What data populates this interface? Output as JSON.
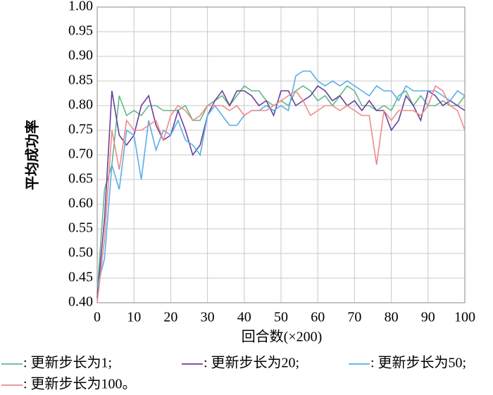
{
  "chart_data": {
    "type": "line",
    "xlabel": "回合数(×200)",
    "ylabel": "平均成功率",
    "x": [
      0,
      2,
      4,
      6,
      8,
      10,
      12,
      14,
      16,
      18,
      20,
      22,
      24,
      26,
      28,
      30,
      32,
      34,
      36,
      38,
      40,
      42,
      44,
      46,
      48,
      50,
      52,
      54,
      56,
      58,
      60,
      62,
      64,
      66,
      68,
      70,
      72,
      74,
      76,
      78,
      80,
      82,
      84,
      86,
      88,
      90,
      92,
      94,
      96,
      98,
      100
    ],
    "xlim": [
      0,
      100
    ],
    "xticks": [
      0,
      10,
      20,
      30,
      40,
      50,
      60,
      70,
      80,
      90,
      100
    ],
    "ylim": [
      0.4,
      1.0
    ],
    "yticks": [
      {
        "value": 0.4,
        "label": "0.40"
      },
      0.45,
      {
        "value": 0.5,
        "label": "0.50"
      },
      0.55,
      {
        "value": 0.6,
        "label": "0.60"
      },
      0.65,
      {
        "value": 0.7,
        "label": "0.70"
      },
      0.75,
      {
        "value": 0.8,
        "label": "0.80"
      },
      0.85,
      {
        "value": 0.9,
        "label": "0.90"
      },
      0.95,
      {
        "value": 1.0,
        "label": "1.00"
      }
    ],
    "grid": true,
    "series": [
      {
        "name": ": 更新步长为1;",
        "color": "#5fb98c",
        "values": [
          0.42,
          0.63,
          0.68,
          0.82,
          0.78,
          0.79,
          0.78,
          0.8,
          0.8,
          0.79,
          0.79,
          0.79,
          0.8,
          0.77,
          0.77,
          0.8,
          0.81,
          0.82,
          0.8,
          0.82,
          0.84,
          0.83,
          0.83,
          0.81,
          0.8,
          0.81,
          0.8,
          0.83,
          0.84,
          0.83,
          0.81,
          0.82,
          0.8,
          0.82,
          0.84,
          0.83,
          0.8,
          0.8,
          0.79,
          0.8,
          0.79,
          0.82,
          0.83,
          0.8,
          0.82,
          0.8,
          0.8,
          0.81,
          0.8,
          0.8,
          0.82
        ]
      },
      {
        "name": ": 更新步长为20;",
        "color": "#6b3f9c",
        "values": [
          0.41,
          0.57,
          0.83,
          0.74,
          0.72,
          0.74,
          0.8,
          0.82,
          0.76,
          0.73,
          0.74,
          0.79,
          0.75,
          0.7,
          0.72,
          0.78,
          0.81,
          0.83,
          0.8,
          0.83,
          0.83,
          0.82,
          0.8,
          0.81,
          0.78,
          0.83,
          0.83,
          0.8,
          0.81,
          0.82,
          0.84,
          0.83,
          0.81,
          0.82,
          0.8,
          0.81,
          0.79,
          0.81,
          0.79,
          0.79,
          0.75,
          0.77,
          0.82,
          0.8,
          0.77,
          0.83,
          0.82,
          0.8,
          0.81,
          0.8,
          0.79
        ]
      },
      {
        "name": ": 更新步长为50;",
        "color": "#5aaee8",
        "values": [
          0.43,
          0.49,
          0.68,
          0.63,
          0.75,
          0.74,
          0.65,
          0.77,
          0.71,
          0.75,
          0.74,
          0.77,
          0.73,
          0.72,
          0.7,
          0.78,
          0.8,
          0.78,
          0.76,
          0.76,
          0.78,
          0.79,
          0.79,
          0.8,
          0.79,
          0.8,
          0.79,
          0.86,
          0.87,
          0.87,
          0.85,
          0.84,
          0.85,
          0.84,
          0.85,
          0.84,
          0.83,
          0.82,
          0.84,
          0.83,
          0.83,
          0.81,
          0.84,
          0.83,
          0.83,
          0.83,
          0.83,
          0.82,
          0.81,
          0.83,
          0.82
        ]
      },
      {
        "name": ": 更新步长为100。",
        "color": "#f08a8a",
        "values": [
          0.4,
          0.53,
          0.75,
          0.67,
          0.77,
          0.75,
          0.75,
          0.76,
          0.77,
          0.73,
          0.78,
          0.8,
          0.79,
          0.77,
          0.78,
          0.8,
          0.8,
          0.8,
          0.79,
          0.8,
          0.78,
          0.79,
          0.79,
          0.79,
          0.8,
          0.81,
          0.82,
          0.83,
          0.81,
          0.78,
          0.79,
          0.8,
          0.8,
          0.79,
          0.8,
          0.79,
          0.78,
          0.78,
          0.68,
          0.79,
          0.77,
          0.79,
          0.79,
          0.79,
          0.78,
          0.8,
          0.84,
          0.83,
          0.8,
          0.79,
          0.75
        ]
      }
    ]
  }
}
